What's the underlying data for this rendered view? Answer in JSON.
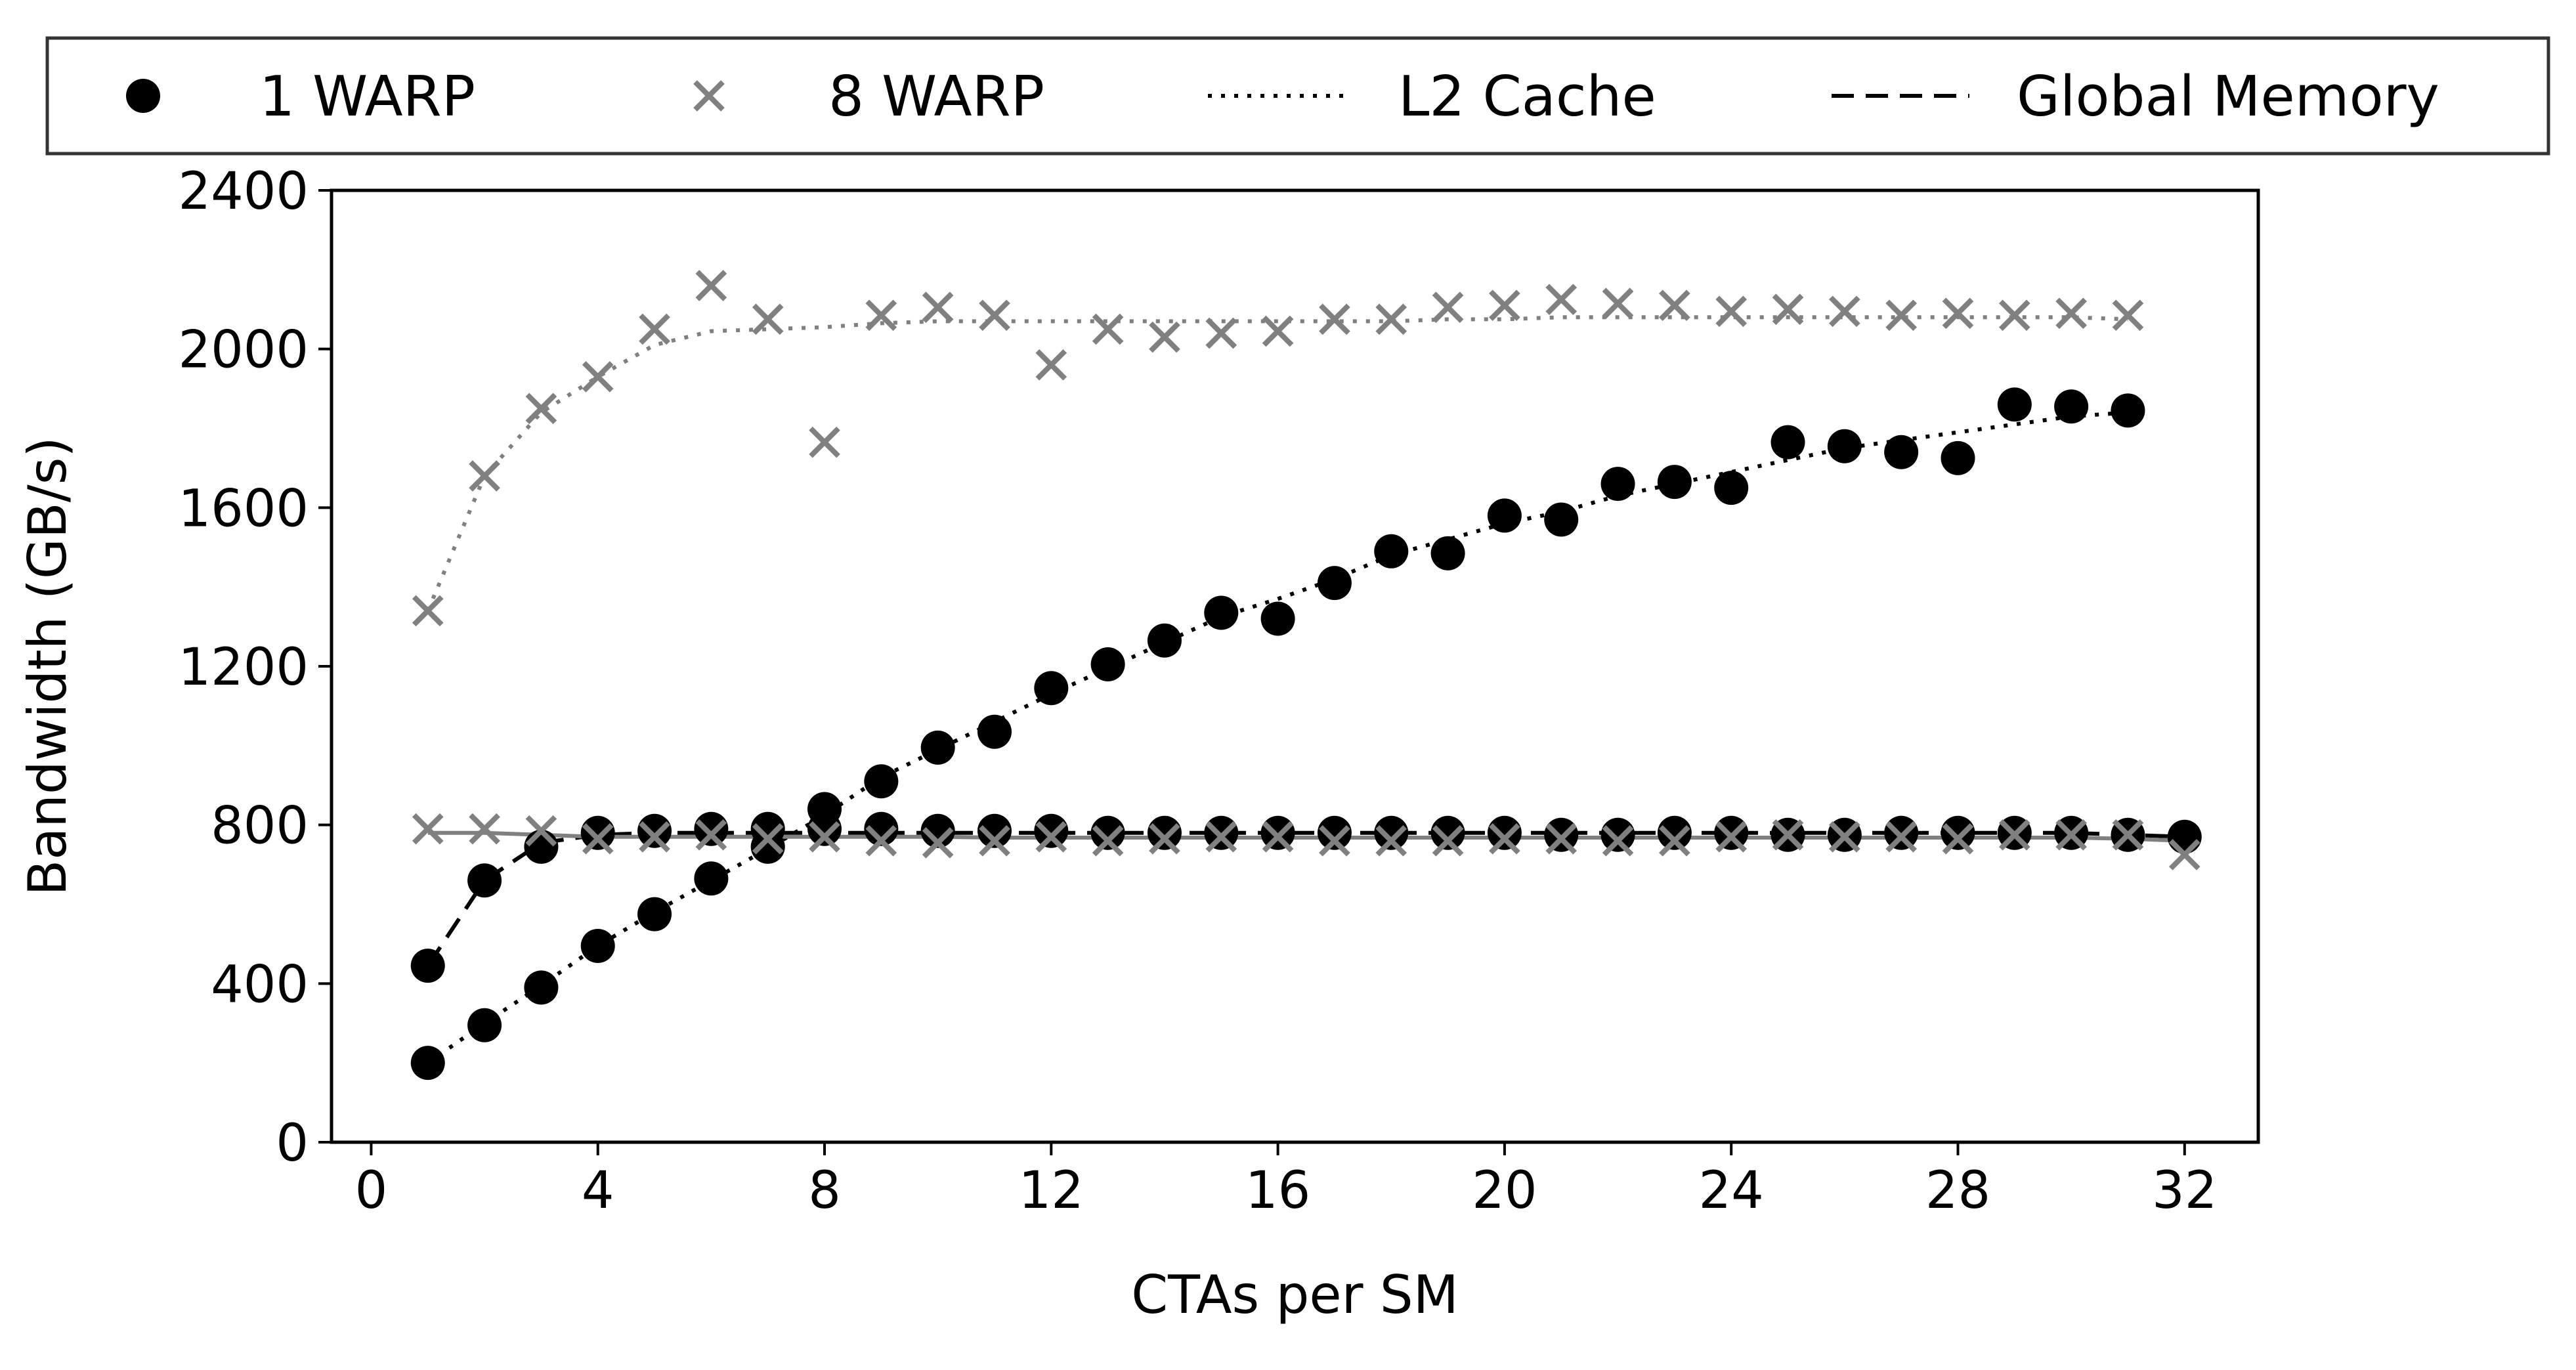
{
  "chart_data": {
    "type": "scatter",
    "xlabel": "CTAs per SM",
    "ylabel": "Bandwidth (GB/s)",
    "xlim": [
      -0.7,
      33.3
    ],
    "ylim": [
      0,
      2400
    ],
    "xticks": [
      0,
      4,
      8,
      12,
      16,
      20,
      24,
      28,
      32
    ],
    "yticks": [
      0,
      400,
      800,
      1200,
      1600,
      2000,
      2400
    ],
    "grid": false,
    "legend_position": "top",
    "legend": [
      {
        "label": "1 WARP",
        "kind": "marker",
        "marker": "circle",
        "color": "#000000"
      },
      {
        "label": "8 WARP",
        "kind": "marker",
        "marker": "x",
        "color": "#808080"
      },
      {
        "label": "L2 Cache",
        "kind": "line",
        "dash": "dotted",
        "color": "#000000"
      },
      {
        "label": "Global Memory",
        "kind": "line",
        "dash": "dashed",
        "color": "#000000"
      }
    ],
    "series": [
      {
        "legend": "1 WARP",
        "group": "L2 Cache",
        "marker": "circle",
        "color": "#000000",
        "line": "dotted",
        "x": [
          1,
          2,
          3,
          4,
          5,
          6,
          7,
          8,
          9,
          10,
          11,
          12,
          13,
          14,
          15,
          16,
          17,
          18,
          19,
          20,
          21,
          22,
          23,
          24,
          25,
          26,
          27,
          28,
          29,
          30,
          31
        ],
        "y": [
          200,
          295,
          390,
          495,
          575,
          665,
          745,
          840,
          910,
          995,
          1035,
          1145,
          1205,
          1265,
          1335,
          1320,
          1410,
          1490,
          1485,
          1580,
          1570,
          1660,
          1665,
          1650,
          1765,
          1755,
          1740,
          1725,
          1860,
          1855,
          1845
        ],
        "fit": [
          200,
          300,
          395,
          495,
          580,
          660,
          740,
          825,
          920,
          990,
          1060,
          1130,
          1195,
          1260,
          1325,
          1370,
          1420,
          1480,
          1520,
          1560,
          1590,
          1630,
          1660,
          1690,
          1720,
          1750,
          1770,
          1790,
          1810,
          1830,
          1840
        ]
      },
      {
        "legend": "8 WARP",
        "group": "L2 Cache",
        "marker": "x",
        "color": "#808080",
        "line": "dotted",
        "x": [
          1,
          2,
          3,
          4,
          5,
          6,
          7,
          8,
          9,
          10,
          11,
          12,
          13,
          14,
          15,
          16,
          17,
          18,
          19,
          20,
          21,
          22,
          23,
          24,
          25,
          26,
          27,
          28,
          29,
          30,
          31
        ],
        "y": [
          1340,
          1680,
          1850,
          1930,
          2050,
          2160,
          2075,
          1765,
          2085,
          2105,
          2085,
          1960,
          2050,
          2030,
          2040,
          2045,
          2075,
          2075,
          2105,
          2110,
          2125,
          2115,
          2110,
          2095,
          2100,
          2095,
          2085,
          2090,
          2085,
          2090,
          2085
        ],
        "fit": [
          1340,
          1680,
          1840,
          1930,
          2010,
          2045,
          2050,
          2055,
          2065,
          2070,
          2070,
          2070,
          2070,
          2070,
          2070,
          2070,
          2070,
          2070,
          2075,
          2075,
          2080,
          2080,
          2080,
          2080,
          2080,
          2080,
          2080,
          2080,
          2080,
          2080,
          2075
        ]
      },
      {
        "legend": "1 WARP",
        "group": "Global Memory",
        "marker": "circle",
        "color": "#000000",
        "line": "dashed",
        "x": [
          1,
          2,
          3,
          4,
          5,
          6,
          7,
          8,
          9,
          10,
          11,
          12,
          13,
          14,
          15,
          16,
          17,
          18,
          19,
          20,
          21,
          22,
          23,
          24,
          25,
          26,
          27,
          28,
          29,
          30,
          31,
          32
        ],
        "y": [
          445,
          660,
          745,
          780,
          785,
          790,
          790,
          790,
          790,
          785,
          785,
          785,
          780,
          780,
          780,
          780,
          780,
          780,
          780,
          780,
          775,
          775,
          780,
          780,
          775,
          775,
          780,
          780,
          780,
          780,
          775,
          770
        ],
        "fit": [
          445,
          660,
          755,
          775,
          780,
          780,
          780,
          780,
          780,
          780,
          780,
          780,
          780,
          780,
          780,
          780,
          780,
          780,
          780,
          780,
          780,
          780,
          780,
          780,
          780,
          780,
          780,
          780,
          780,
          780,
          775,
          770
        ]
      },
      {
        "legend": "8 WARP",
        "group": "Global Memory",
        "marker": "x",
        "color": "#808080",
        "line": "solid",
        "x": [
          1,
          2,
          3,
          4,
          5,
          6,
          7,
          8,
          9,
          10,
          11,
          12,
          13,
          14,
          15,
          16,
          17,
          18,
          19,
          20,
          21,
          22,
          23,
          24,
          25,
          26,
          27,
          28,
          29,
          30,
          31,
          32
        ],
        "y": [
          790,
          790,
          785,
          765,
          770,
          775,
          765,
          770,
          760,
          755,
          760,
          770,
          760,
          765,
          770,
          770,
          760,
          760,
          760,
          765,
          765,
          760,
          760,
          770,
          775,
          770,
          770,
          765,
          775,
          775,
          775,
          725
        ],
        "fit": [
          780,
          780,
          775,
          770,
          770,
          770,
          770,
          770,
          770,
          770,
          768,
          768,
          768,
          768,
          768,
          768,
          768,
          768,
          768,
          768,
          768,
          768,
          768,
          768,
          768,
          768,
          768,
          768,
          768,
          768,
          765,
          760
        ]
      }
    ]
  }
}
